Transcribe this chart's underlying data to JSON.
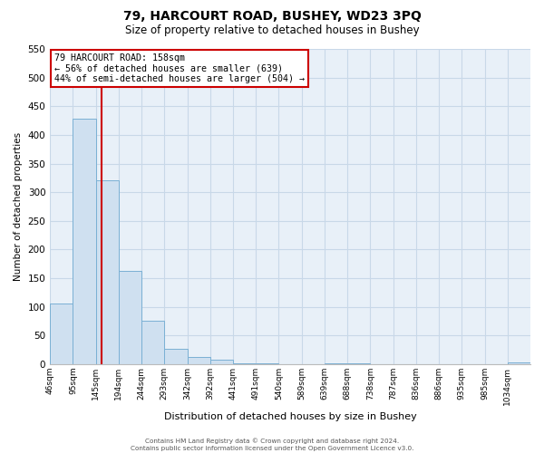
{
  "title": "79, HARCOURT ROAD, BUSHEY, WD23 3PQ",
  "subtitle": "Size of property relative to detached houses in Bushey",
  "xlabel": "Distribution of detached houses by size in Bushey",
  "ylabel": "Number of detached properties",
  "bar_color": "#cfe0f0",
  "bar_edge_color": "#7ab0d4",
  "grid_color": "#c8d8e8",
  "bg_color": "#e8f0f8",
  "annotation_border_color": "#cc0000",
  "vline_color": "#cc0000",
  "footer_line1": "Contains HM Land Registry data © Crown copyright and database right 2024.",
  "footer_line2": "Contains public sector information licensed under the Open Government Licence v3.0.",
  "annotation_title": "79 HARCOURT ROAD: 158sqm",
  "annotation_line1": "← 56% of detached houses are smaller (639)",
  "annotation_line2": "44% of semi-detached houses are larger (504) →",
  "bin_labels": [
    "46sqm",
    "95sqm",
    "145sqm",
    "194sqm",
    "244sqm",
    "293sqm",
    "342sqm",
    "392sqm",
    "441sqm",
    "491sqm",
    "540sqm",
    "589sqm",
    "639sqm",
    "688sqm",
    "738sqm",
    "787sqm",
    "836sqm",
    "886sqm",
    "935sqm",
    "985sqm",
    "1034sqm"
  ],
  "counts": [
    105,
    428,
    320,
    162,
    75,
    27,
    13,
    7,
    2,
    1,
    0,
    0,
    2,
    1,
    0,
    0,
    0,
    0,
    0,
    0,
    3
  ],
  "ylim": [
    0,
    550
  ],
  "yticks": [
    0,
    50,
    100,
    150,
    200,
    250,
    300,
    350,
    400,
    450,
    500,
    550
  ],
  "vline_after_bin": 2,
  "property_size_bin": 2.67
}
